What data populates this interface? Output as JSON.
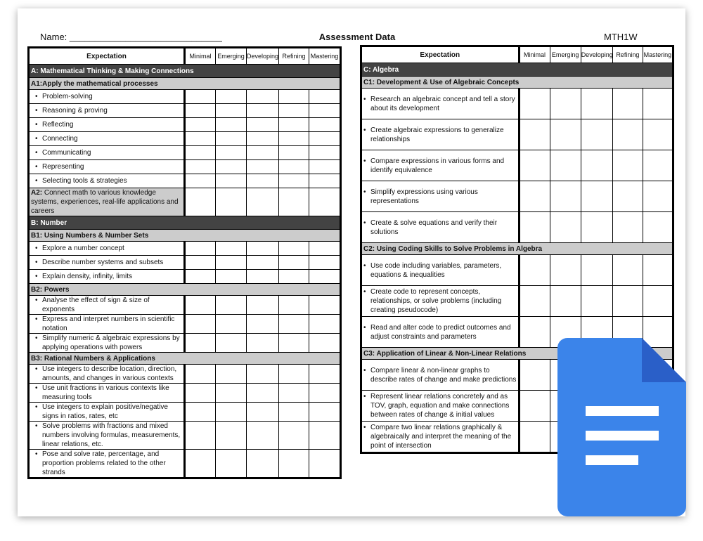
{
  "header": {
    "name_label": "Name: ______________________________",
    "title": "Assessment Data",
    "course": "MTH1W"
  },
  "columns": {
    "expectation": "Expectation",
    "levels": [
      "Minimal",
      "Emerging",
      "Developing",
      "Refining",
      "Mastering"
    ]
  },
  "left_rows": [
    {
      "type": "sec",
      "text": "A: Mathematical Thinking & Making Connections"
    },
    {
      "type": "sub",
      "text": "A1:Apply the mathematical processes"
    },
    {
      "type": "item",
      "text": "Problem-solving"
    },
    {
      "type": "item",
      "text": "Reasoning & proving"
    },
    {
      "type": "item",
      "text": "Reflecting"
    },
    {
      "type": "item",
      "text": "Connecting"
    },
    {
      "type": "item",
      "text": "Communicating"
    },
    {
      "type": "item",
      "text": "Representing"
    },
    {
      "type": "item",
      "text": "Selecting tools & strategies"
    },
    {
      "type": "gitem",
      "bold": "A2:",
      "text": " Connect math to various knowledge systems, experiences,  real-life applications and careers"
    },
    {
      "type": "sec",
      "text": "B: Number"
    },
    {
      "type": "sub",
      "text": "B1: Using Numbers & Number Sets"
    },
    {
      "type": "item",
      "text": "Explore a number concept"
    },
    {
      "type": "item",
      "text": "Describe number systems and subsets"
    },
    {
      "type": "item",
      "text": "Explain density, infinity, limits"
    },
    {
      "type": "sub",
      "text": "B2: Powers"
    },
    {
      "type": "item",
      "text": "Analyse the effect of sign & size of exponents"
    },
    {
      "type": "item",
      "text": "Express and interpret numbers in scientific notation"
    },
    {
      "type": "item",
      "text": "Simplify numeric & algebraic expressions by applying operations with powers"
    },
    {
      "type": "sub",
      "text": "B3: Rational Numbers & Applications"
    },
    {
      "type": "item",
      "text": "Use integers to describe location, direction, amounts, and changes in various contexts"
    },
    {
      "type": "item",
      "text": "Use unit fractions in various contexts like measuring tools"
    },
    {
      "type": "item",
      "text": "Use integers to explain positive/negative signs in ratios, rates, etc"
    },
    {
      "type": "item",
      "text": "Solve problems with fractions and mixed numbers involving formulas, measurements, linear relations, etc."
    },
    {
      "type": "item",
      "text": "Pose and solve rate, percentage, and proportion problems related to the other strands"
    }
  ],
  "right_rows": [
    {
      "type": "sec",
      "text": "C: Algebra"
    },
    {
      "type": "sub",
      "text": "C1: Development & Use of Algebraic Concepts"
    },
    {
      "type": "item",
      "text": "Research an algebraic concept and tell a story about its development"
    },
    {
      "type": "item",
      "text": "Create algebraic expressions to generalize relationships"
    },
    {
      "type": "item",
      "text": "Compare expressions in various forms and identify equivalence"
    },
    {
      "type": "item",
      "text": "Simplify expressions using various representations"
    },
    {
      "type": "item",
      "text": "Create & solve equations and verify their solutions"
    },
    {
      "type": "sub",
      "text": "C2: Using Coding Skills to Solve Problems in Algebra"
    },
    {
      "type": "item",
      "text": "Use code including variables, parameters, equations & inequalities"
    },
    {
      "type": "item",
      "text": "Create code to represent concepts, relationships, or solve problems (including creating pseudocode)"
    },
    {
      "type": "item",
      "text": "Read and alter code to predict outcomes and adjust constraints and parameters"
    },
    {
      "type": "sub",
      "text": "C3: Application of Linear & Non-Linear Relations"
    },
    {
      "type": "item",
      "text": "Compare linear & non-linear graphs to describe rates of change and make predictions"
    },
    {
      "type": "item",
      "text": "Represent linear relations concretely and as TOV, graph, equation and make connections between rates of change & initial values"
    },
    {
      "type": "item",
      "text": "Compare two linear relations graphically & algebraically and interpret the meaning of the point of intersection"
    }
  ],
  "icon": {
    "name": "google-docs-icon",
    "colors": {
      "body": "#3b84ea",
      "fold": "#2a5fc8",
      "lines": "#ffffff"
    }
  }
}
